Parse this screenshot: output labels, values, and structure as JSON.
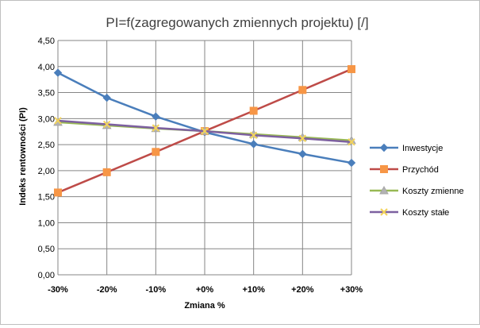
{
  "chart_data": {
    "type": "line",
    "title": "PI=f(zagregowanych zmiennych projektu) [/]",
    "xlabel": "Zmiana %",
    "ylabel": "Indeks rentowności (PI)",
    "categories": [
      "-30%",
      "-20%",
      "-10%",
      "+0%",
      "+10%",
      "+20%",
      "+30%"
    ],
    "ylim": [
      0,
      4.5
    ],
    "yticks": [
      "0,00",
      "0,50",
      "1,00",
      "1,50",
      "2,00",
      "2,50",
      "3,00",
      "3,50",
      "4,00",
      "4,50"
    ],
    "grid": true,
    "legend_position": "right",
    "series": [
      {
        "name": "Inwestycje",
        "color": "#4a7ebb",
        "marker": "diamond",
        "values": [
          3.88,
          3.4,
          3.04,
          2.74,
          2.51,
          2.32,
          2.15
        ]
      },
      {
        "name": "Przychód",
        "color": "#be4b48",
        "marker": "square",
        "values": [
          1.58,
          1.97,
          2.36,
          2.76,
          3.15,
          3.55,
          3.95
        ]
      },
      {
        "name": "Koszty zmienne",
        "color": "#98b954",
        "marker": "triangle",
        "values": [
          2.93,
          2.87,
          2.81,
          2.76,
          2.7,
          2.64,
          2.58
        ]
      },
      {
        "name": "Koszty stałe",
        "color": "#7d60a0",
        "marker": "x",
        "values": [
          2.96,
          2.89,
          2.82,
          2.76,
          2.68,
          2.62,
          2.55
        ]
      }
    ]
  }
}
